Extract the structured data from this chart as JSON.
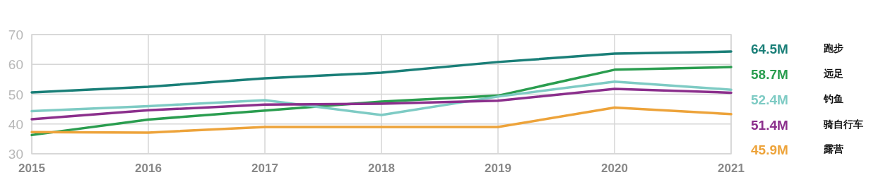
{
  "chart_data": {
    "type": "line",
    "x": [
      2015,
      2016,
      2017,
      2018,
      2019,
      2020,
      2021
    ],
    "xlim": [
      2015,
      2021
    ],
    "xticks": [
      2015,
      2016,
      2017,
      2018,
      2019,
      2020,
      2021
    ],
    "ylim": [
      30,
      70
    ],
    "yticks": [
      30,
      40,
      50,
      60,
      70
    ],
    "grid": true,
    "legend": "right",
    "marker": "none",
    "line_style": "solid",
    "series": [
      {
        "name": "跑步",
        "color": "#1a7f78",
        "values": [
          50.6,
          52.5,
          55.3,
          57.2,
          60.8,
          63.6,
          64.3
        ]
      },
      {
        "name": "远足",
        "color": "#2a9d4f",
        "values": [
          36.3,
          41.5,
          44.5,
          47.5,
          49.5,
          58.2,
          59.1
        ]
      },
      {
        "name": "钓鱼",
        "color": "#7ecbc4",
        "values": [
          44.3,
          46.0,
          48.0,
          43.0,
          49.2,
          54.2,
          51.5
        ]
      },
      {
        "name": "骑自行车",
        "color": "#8b2f8c",
        "values": [
          41.6,
          44.6,
          46.5,
          46.8,
          47.8,
          51.8,
          50.5
        ]
      },
      {
        "name": "露营",
        "color": "#eda33a",
        "values": [
          37.3,
          37.1,
          39.0,
          39.0,
          39.0,
          45.5,
          43.3
        ]
      }
    ],
    "annotations": [
      "64.5M",
      "58.7M",
      "52.4M",
      "51.4M",
      "45.9M"
    ]
  }
}
